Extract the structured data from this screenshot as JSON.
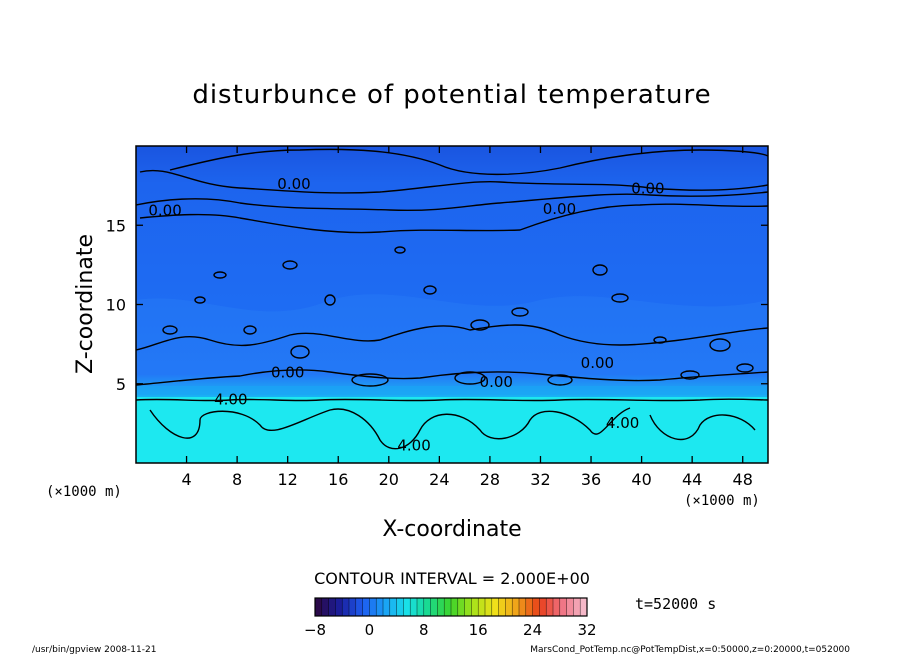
{
  "chart_data": {
    "type": "heatmap",
    "title": "disturbunce of potential temperature",
    "xlabel": "X-coordinate",
    "ylabel": "Z-coordinate",
    "x_unit": "(×1000 m)",
    "y_unit": "(×1000 m)",
    "xlim": [
      0,
      50
    ],
    "ylim": [
      0,
      20
    ],
    "x_ticks": [
      "4",
      "8",
      "12",
      "16",
      "20",
      "24",
      "28",
      "32",
      "36",
      "40",
      "44",
      "48"
    ],
    "x_tick_values": [
      4,
      8,
      12,
      16,
      20,
      24,
      28,
      32,
      36,
      40,
      44,
      48
    ],
    "y_ticks": [
      "5",
      "10",
      "15"
    ],
    "y_tick_values": [
      5,
      10,
      15
    ],
    "contour_interval_label": "CONTOUR INTERVAL = 2.000E+00",
    "time_label": "t=52000 s",
    "colorbar": {
      "min": -8,
      "max": 32,
      "tick_labels": [
        "−8",
        "0",
        "8",
        "16",
        "24",
        "32"
      ],
      "tick_values": [
        -8,
        0,
        8,
        16,
        24,
        32
      ],
      "colormap": [
        "#2a0a4a",
        "#1a1f9e",
        "#1e5cf0",
        "#1aa0f5",
        "#19e0e8",
        "#19d98c",
        "#3ed42a",
        "#a8e21a",
        "#f0e01a",
        "#f0a01a",
        "#e8401a",
        "#f07080",
        "#f5b8c8"
      ]
    },
    "field_colors": {
      "upper_layer": "#1a5ae6",
      "mid_layer": "#1f6ff5",
      "lower_layer": "#1de8f0"
    },
    "contour_labels": [
      {
        "text": "0.00",
        "x": 12.5,
        "z": 17.3
      },
      {
        "text": "0.00",
        "x": 40.5,
        "z": 17.0
      },
      {
        "text": "0.00",
        "x": 2.3,
        "z": 15.6
      },
      {
        "text": "0.00",
        "x": 33.5,
        "z": 15.7
      },
      {
        "text": "0.00",
        "x": 12.0,
        "z": 5.4
      },
      {
        "text": "0.00",
        "x": 36.5,
        "z": 6.0
      },
      {
        "text": "0.00",
        "x": 28.5,
        "z": 4.8
      },
      {
        "text": "4.00",
        "x": 7.5,
        "z": 3.7
      },
      {
        "text": "4.00",
        "x": 22.0,
        "z": 0.8
      },
      {
        "text": "4.00",
        "x": 38.5,
        "z": 2.2
      }
    ],
    "footer_left": "/usr/bin/gpview   2008-11-21",
    "footer_right": "MarsCond_PotTemp.nc@PotTempDist,x=0:50000,z=0:20000,t=052000"
  }
}
